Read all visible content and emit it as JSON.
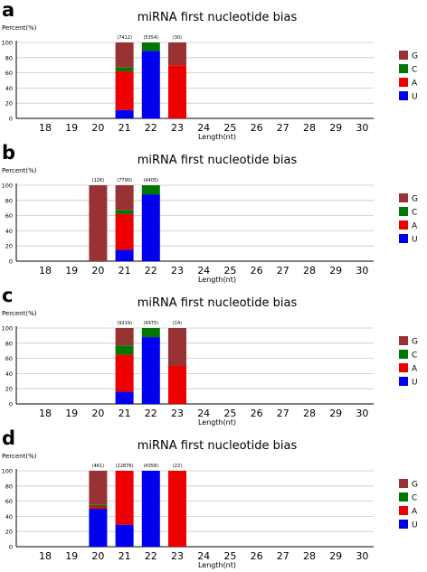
{
  "colors": {
    "U": "#0000ee",
    "A": "#ee0000",
    "C": "#007700",
    "G": "#993333",
    "grid": "#c8c8c8",
    "axis": "#000000"
  },
  "chart_data": [
    {
      "panel_label": "a",
      "type": "bar",
      "stacked": true,
      "title": "miRNA first nucleotide bias",
      "ylabel": "Percent(%)",
      "xlabel": "Length(nt)",
      "ylim": [
        0,
        100
      ],
      "yticks": [
        "0",
        "20",
        "40",
        "60",
        "80",
        "100"
      ],
      "categories": [
        "18",
        "19",
        "20",
        "21",
        "22",
        "23",
        "24",
        "25",
        "26",
        "27",
        "28",
        "29",
        "30"
      ],
      "counts": [
        "",
        "",
        "",
        "(7412)",
        "(5354)",
        "(30)",
        "",
        "",
        "",
        "",
        "",
        "",
        ""
      ],
      "series": [
        {
          "name": "U",
          "values": [
            0,
            0,
            0,
            11,
            89,
            0,
            0,
            0,
            0,
            0,
            0,
            0,
            0
          ]
        },
        {
          "name": "A",
          "values": [
            0,
            0,
            0,
            51,
            0,
            70,
            0,
            0,
            0,
            0,
            0,
            0,
            0
          ]
        },
        {
          "name": "C",
          "values": [
            0,
            0,
            0,
            5,
            11,
            0,
            0,
            0,
            0,
            0,
            0,
            0,
            0
          ]
        },
        {
          "name": "G",
          "values": [
            0,
            0,
            0,
            33,
            0,
            30,
            0,
            0,
            0,
            0,
            0,
            0,
            0
          ]
        }
      ],
      "legend": [
        "G",
        "C",
        "A",
        "U"
      ],
      "legend_position": "right"
    },
    {
      "panel_label": "b",
      "type": "bar",
      "stacked": true,
      "title": "miRNA first nucleotide bias",
      "ylabel": "Percent(%)",
      "xlabel": "Length(nt)",
      "ylim": [
        0,
        100
      ],
      "yticks": [
        "0",
        "20",
        "40",
        "60",
        "80",
        "100"
      ],
      "categories": [
        "18",
        "19",
        "20",
        "21",
        "22",
        "23",
        "24",
        "25",
        "26",
        "27",
        "28",
        "29",
        "30"
      ],
      "counts": [
        "",
        "",
        "(126)",
        "(7790)",
        "(4405)",
        "",
        "",
        "",
        "",
        "",
        "",
        "",
        ""
      ],
      "series": [
        {
          "name": "U",
          "values": [
            0,
            0,
            0,
            15,
            88,
            0,
            0,
            0,
            0,
            0,
            0,
            0,
            0
          ]
        },
        {
          "name": "A",
          "values": [
            0,
            0,
            0,
            47,
            0,
            0,
            0,
            0,
            0,
            0,
            0,
            0,
            0
          ]
        },
        {
          "name": "C",
          "values": [
            0,
            0,
            0,
            5,
            12,
            0,
            0,
            0,
            0,
            0,
            0,
            0,
            0
          ]
        },
        {
          "name": "G",
          "values": [
            0,
            0,
            100,
            33,
            0,
            0,
            0,
            0,
            0,
            0,
            0,
            0,
            0
          ]
        }
      ],
      "legend": [
        "G",
        "C",
        "A",
        "U"
      ],
      "legend_position": "right"
    },
    {
      "panel_label": "c",
      "type": "bar",
      "stacked": true,
      "title": "miRNA first nucleotide bias",
      "ylabel": "Percent(%)",
      "xlabel": "Length(nt)",
      "ylim": [
        0,
        100
      ],
      "yticks": [
        "0",
        "20",
        "40",
        "60",
        "80",
        "100"
      ],
      "categories": [
        "18",
        "19",
        "20",
        "21",
        "22",
        "23",
        "24",
        "25",
        "26",
        "27",
        "28",
        "29",
        "30"
      ],
      "counts": [
        "",
        "",
        "",
        "(9219)",
        "(4975)",
        "(14)",
        "",
        "",
        "",
        "",
        "",
        "",
        ""
      ],
      "series": [
        {
          "name": "U",
          "values": [
            0,
            0,
            0,
            16,
            88,
            0,
            0,
            0,
            0,
            0,
            0,
            0,
            0
          ]
        },
        {
          "name": "A",
          "values": [
            0,
            0,
            0,
            49,
            0,
            50,
            0,
            0,
            0,
            0,
            0,
            0,
            0
          ]
        },
        {
          "name": "C",
          "values": [
            0,
            0,
            0,
            12,
            12,
            0,
            0,
            0,
            0,
            0,
            0,
            0,
            0
          ]
        },
        {
          "name": "G",
          "values": [
            0,
            0,
            0,
            23,
            0,
            50,
            0,
            0,
            0,
            0,
            0,
            0,
            0
          ]
        }
      ],
      "legend": [
        "G",
        "C",
        "A",
        "U"
      ],
      "legend_position": "right"
    },
    {
      "panel_label": "d",
      "type": "bar",
      "stacked": true,
      "title": "miRNA first nucleotide bias",
      "ylabel": "Percent(%)",
      "xlabel": "Length(nt)",
      "ylim": [
        0,
        100
      ],
      "yticks": [
        "0",
        "20",
        "40",
        "60",
        "80",
        "100"
      ],
      "categories": [
        "18",
        "19",
        "20",
        "21",
        "22",
        "23",
        "24",
        "25",
        "26",
        "27",
        "28",
        "29",
        "30"
      ],
      "counts": [
        "",
        "",
        "(461)",
        "(22876)",
        "(4358)",
        "(22)",
        "",
        "",
        "",
        "",
        "",
        "",
        ""
      ],
      "series": [
        {
          "name": "U",
          "values": [
            0,
            0,
            50,
            29,
            100,
            0,
            0,
            0,
            0,
            0,
            0,
            0,
            0
          ]
        },
        {
          "name": "A",
          "values": [
            0,
            0,
            3,
            71,
            0,
            100,
            0,
            0,
            0,
            0,
            0,
            0,
            0
          ]
        },
        {
          "name": "C",
          "values": [
            0,
            0,
            2,
            0,
            0,
            0,
            0,
            0,
            0,
            0,
            0,
            0,
            0
          ]
        },
        {
          "name": "G",
          "values": [
            0,
            0,
            45,
            0,
            0,
            0,
            0,
            0,
            0,
            0,
            0,
            0,
            0
          ]
        }
      ],
      "legend": [
        "G",
        "C",
        "A",
        "U"
      ],
      "legend_position": "right"
    }
  ]
}
